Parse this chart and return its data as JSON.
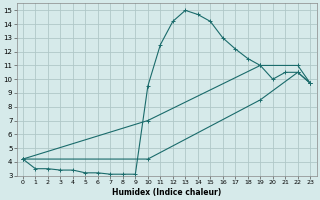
{
  "xlabel": "Humidex (Indice chaleur)",
  "ylabel": "",
  "background_color": "#d6eaea",
  "grid_color": "#b0c8c8",
  "line_color": "#1a6b6b",
  "xlim": [
    -0.5,
    23.5
  ],
  "ylim": [
    3,
    15.5
  ],
  "xticks": [
    0,
    1,
    2,
    3,
    4,
    5,
    6,
    7,
    8,
    9,
    10,
    11,
    12,
    13,
    14,
    15,
    16,
    17,
    18,
    19,
    20,
    21,
    22,
    23
  ],
  "yticks": [
    3,
    4,
    5,
    6,
    7,
    8,
    9,
    10,
    11,
    12,
    13,
    14,
    15
  ],
  "series": {
    "max": {
      "x": [
        0,
        1,
        2,
        3,
        4,
        5,
        6,
        7,
        8,
        9,
        10,
        11,
        12,
        13,
        14,
        15,
        16,
        17,
        18,
        19,
        20,
        21,
        22,
        23
      ],
      "y": [
        4.2,
        3.5,
        3.5,
        3.4,
        3.4,
        3.2,
        3.2,
        3.1,
        3.1,
        3.1,
        9.5,
        12.5,
        14.2,
        15.0,
        14.7,
        14.2,
        13.0,
        12.2,
        11.5,
        11.0,
        10.0,
        10.5,
        10.5,
        9.7
      ]
    },
    "mean": {
      "x": [
        0,
        10,
        19,
        22,
        23
      ],
      "y": [
        4.2,
        7.0,
        11.0,
        11.0,
        9.7
      ]
    },
    "min": {
      "x": [
        0,
        10,
        19,
        22,
        23
      ],
      "y": [
        4.2,
        4.2,
        8.5,
        10.5,
        9.7
      ]
    }
  }
}
